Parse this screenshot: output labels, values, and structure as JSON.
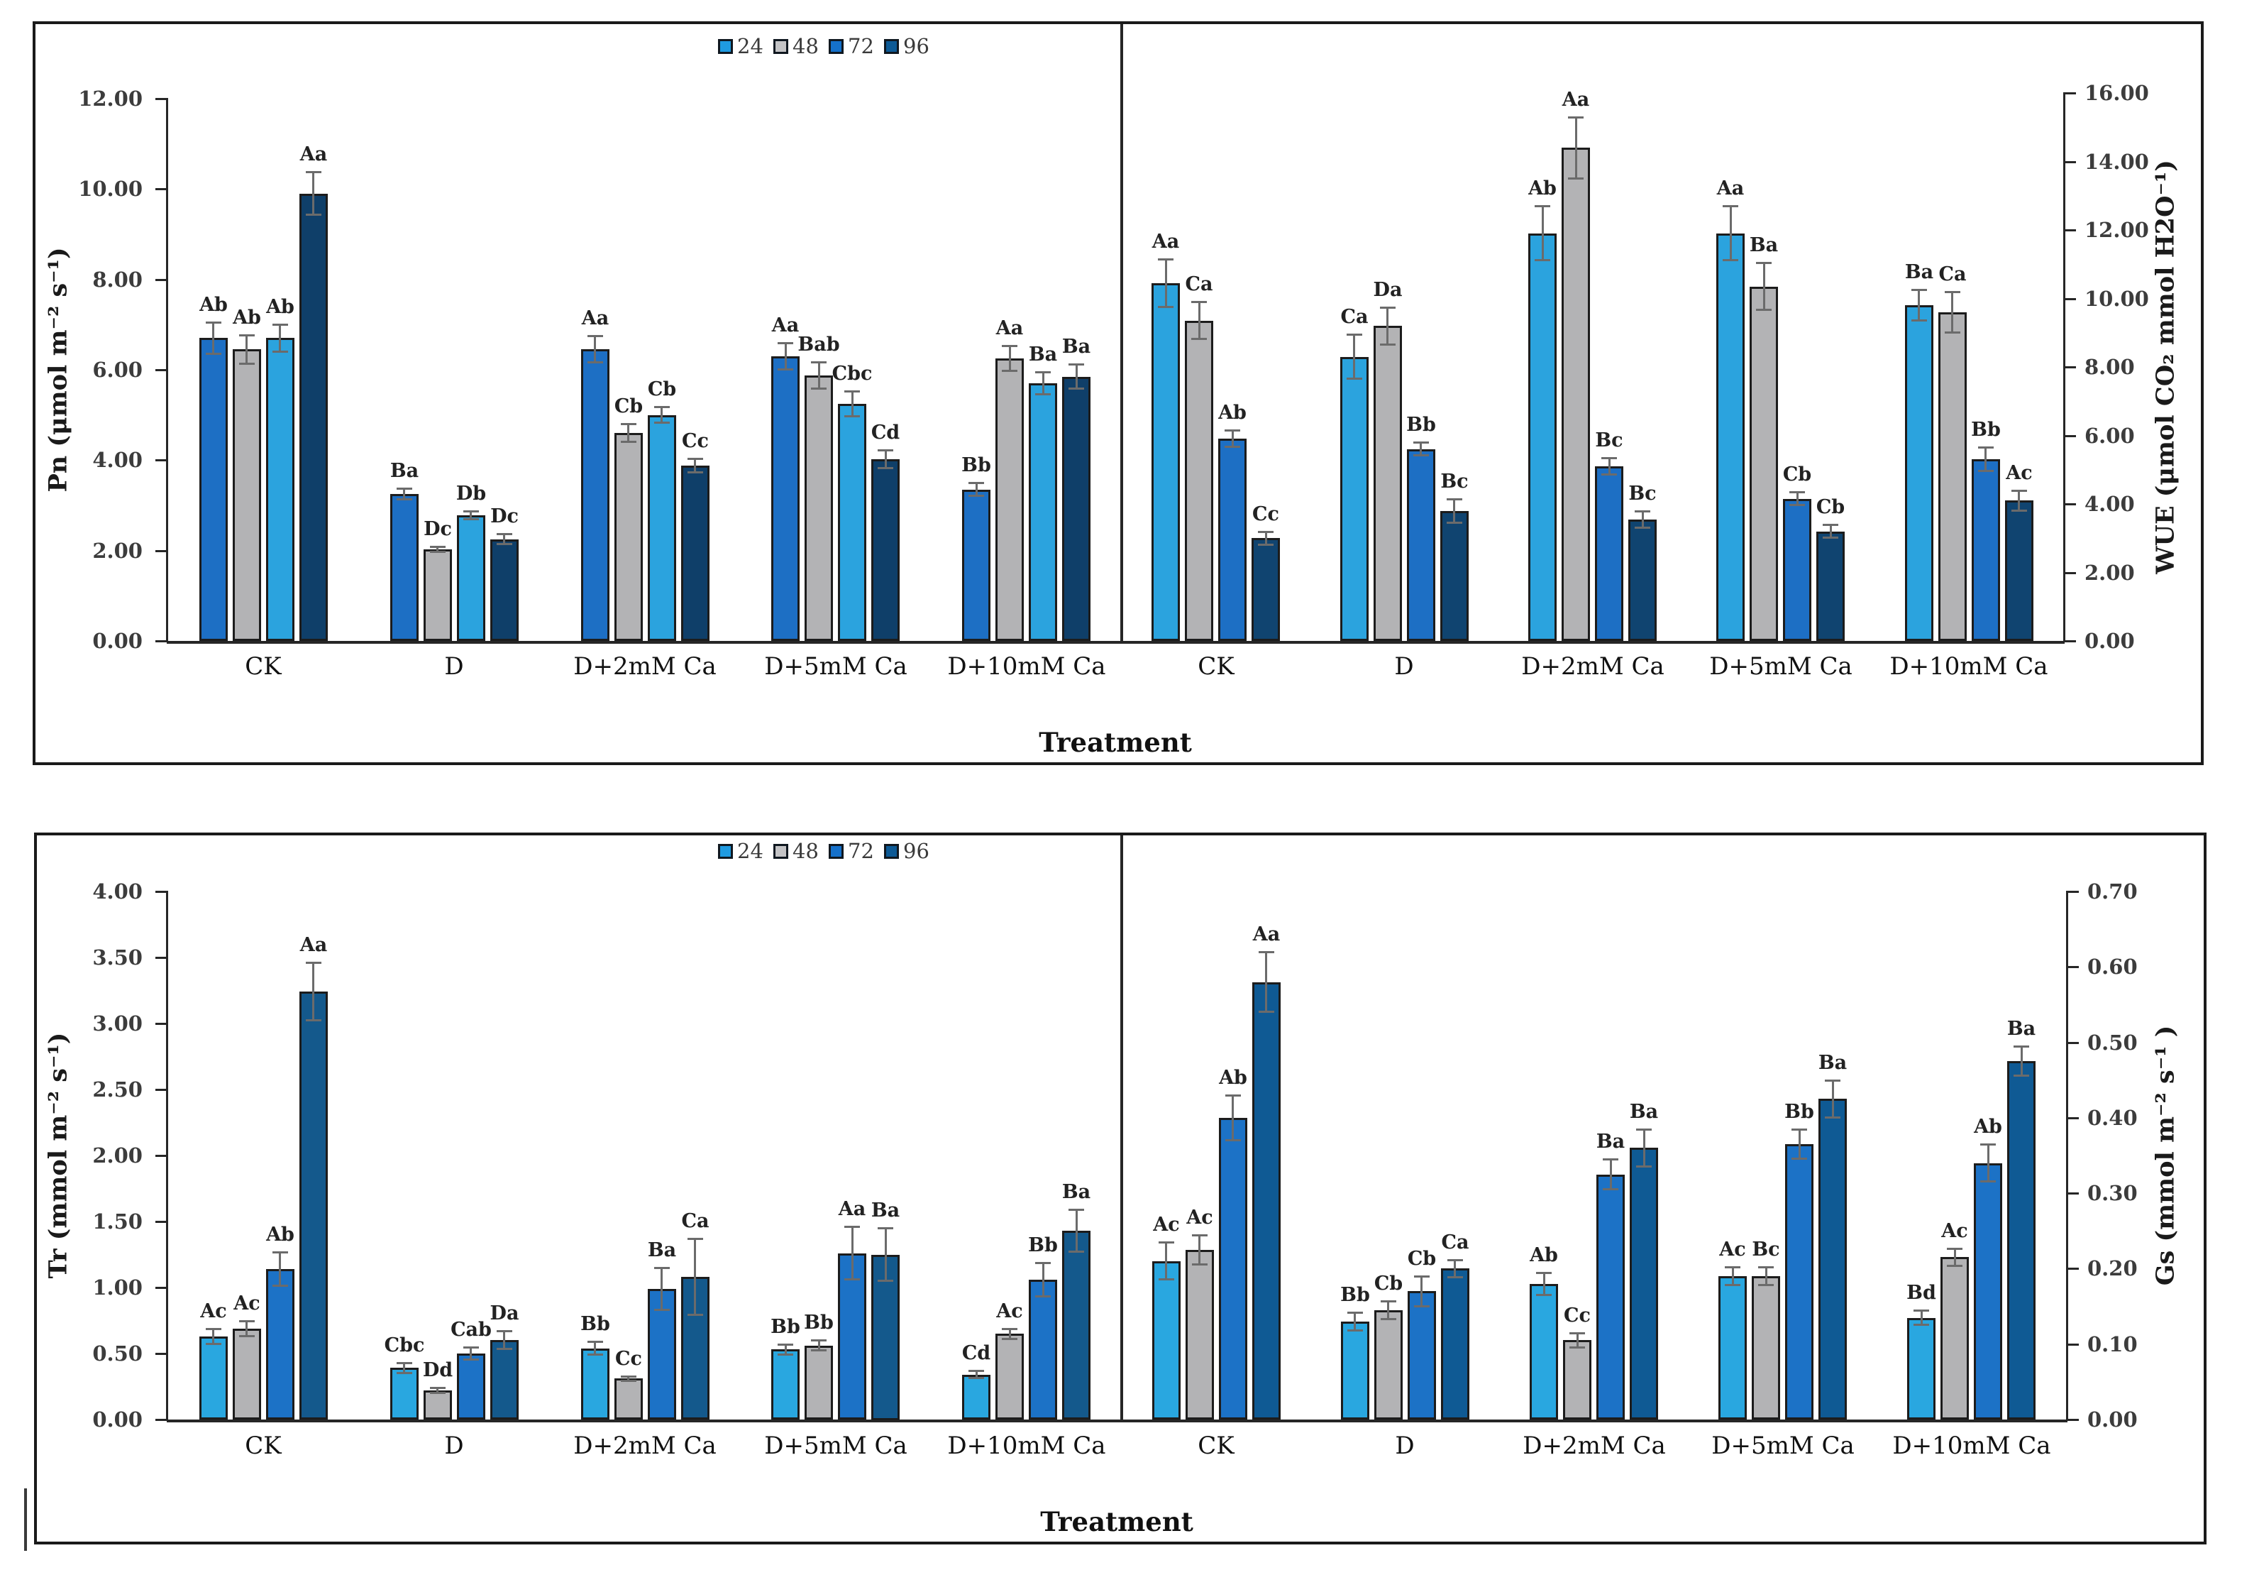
{
  "figure": {
    "xlabel": "Treatment",
    "categories": [
      "CK",
      "D",
      "D+2mM Ca",
      "D+5mM Ca",
      "D+10mM Ca"
    ],
    "legend": {
      "items": [
        {
          "label": "24",
          "color": "#1F9BE1"
        },
        {
          "label": "48",
          "color": "#C4C4C6"
        },
        {
          "label": "72",
          "color": "#1571CB"
        },
        {
          "label": "96",
          "color": "#0D5A96"
        }
      ]
    }
  },
  "chart_data": [
    {
      "id": "pn",
      "panel": "top-left",
      "type": "bar",
      "title": "",
      "xlabel": "Treatment",
      "ylabel": "Pn (μmol m⁻² s⁻¹)",
      "axis_side": "left",
      "ylim": [
        0,
        12
      ],
      "ytick_step": 2,
      "yticks": [
        "0.00",
        "2.00",
        "4.00",
        "6.00",
        "8.00",
        "10.00",
        "12.00"
      ],
      "categories": [
        "CK",
        "D",
        "D+2mM Ca",
        "D+5mM Ca",
        "D+10mM Ca"
      ],
      "series": [
        {
          "name": "24",
          "color": "#1D6FC4",
          "values": [
            6.7,
            3.25,
            6.45,
            6.3,
            3.35
          ],
          "errors": [
            0.35,
            0.12,
            0.3,
            0.3,
            0.15
          ],
          "letters": [
            "Ab",
            "Ba",
            "Aa",
            "Aa",
            "Bb"
          ]
        },
        {
          "name": "48",
          "color": "#B3B3B5",
          "values": [
            6.45,
            2.03,
            4.6,
            5.88,
            6.25
          ],
          "errors": [
            0.32,
            0.06,
            0.2,
            0.3,
            0.28
          ],
          "letters": [
            "Ab",
            "Dc",
            "Cb",
            "Bab",
            "Aa"
          ]
        },
        {
          "name": "72",
          "color": "#2BA3DE",
          "values": [
            6.7,
            2.78,
            5.0,
            5.25,
            5.7
          ],
          "errors": [
            0.3,
            0.1,
            0.18,
            0.28,
            0.25
          ],
          "letters": [
            "Ab",
            "Db",
            "Cb",
            "Cbc",
            "Ba"
          ]
        },
        {
          "name": "96",
          "color": "#0F3F69",
          "values": [
            9.9,
            2.25,
            3.88,
            4.02,
            5.85
          ],
          "errors": [
            0.48,
            0.12,
            0.15,
            0.2,
            0.28
          ],
          "letters": [
            "Aa",
            "Dc",
            "Cc",
            "Cd",
            "Ba"
          ]
        }
      ]
    },
    {
      "id": "wue",
      "panel": "top-right",
      "type": "bar",
      "title": "",
      "xlabel": "Treatment",
      "ylabel": "WUE (μmol CO₂  mmol H2O⁻¹)",
      "axis_side": "right",
      "ylim": [
        0,
        16
      ],
      "ytick_step": 2,
      "yticks": [
        "0.00",
        "2.00",
        "4.00",
        "6.00",
        "8.00",
        "10.00",
        "12.00",
        "14.00",
        "16.00"
      ],
      "categories": [
        "CK",
        "D",
        "D+2mM Ca",
        "D+5mM Ca",
        "D+10mM Ca"
      ],
      "series": [
        {
          "name": "24",
          "color": "#2BA3DE",
          "values": [
            10.45,
            8.3,
            11.9,
            11.9,
            9.8
          ],
          "errors": [
            0.7,
            0.65,
            0.8,
            0.8,
            0.45
          ],
          "letters": [
            "Aa",
            "Ca",
            "Ab",
            "Aa",
            "Ba"
          ]
        },
        {
          "name": "48",
          "color": "#B3B3B5",
          "values": [
            9.35,
            9.2,
            14.4,
            10.35,
            9.6
          ],
          "errors": [
            0.55,
            0.55,
            0.9,
            0.7,
            0.6
          ],
          "letters": [
            "Ca",
            "Da",
            "Aa",
            "Ba",
            "Ca"
          ]
        },
        {
          "name": "72",
          "color": "#1D6FC4",
          "values": [
            5.9,
            5.6,
            5.1,
            4.15,
            5.3
          ],
          "errors": [
            0.25,
            0.2,
            0.25,
            0.2,
            0.35
          ],
          "letters": [
            "Ab",
            "Bb",
            "Bc",
            "Cb",
            "Bb"
          ]
        },
        {
          "name": "96",
          "color": "#104470",
          "values": [
            3.0,
            3.8,
            3.55,
            3.2,
            4.1
          ],
          "errors": [
            0.2,
            0.35,
            0.25,
            0.2,
            0.3
          ],
          "letters": [
            "Cc",
            "Bc",
            "Bc",
            "Cb",
            "Ac"
          ]
        }
      ]
    },
    {
      "id": "tr",
      "panel": "bottom-left",
      "type": "bar",
      "title": "",
      "xlabel": "Treatment",
      "ylabel": "Tr (mmol m⁻² s⁻¹)",
      "axis_side": "left",
      "ylim": [
        0,
        4
      ],
      "ytick_step": 0.5,
      "yticks": [
        "0.00",
        "0.50",
        "1.00",
        "1.50",
        "2.00",
        "2.50",
        "3.00",
        "3.50",
        "4.00"
      ],
      "categories": [
        "CK",
        "D",
        "D+2mM Ca",
        "D+5mM Ca",
        "D+10mM Ca"
      ],
      "series": [
        {
          "name": "24",
          "color": "#29A7E0",
          "values": [
            0.63,
            0.39,
            0.54,
            0.53,
            0.34
          ],
          "errors": [
            0.06,
            0.04,
            0.05,
            0.04,
            0.03
          ],
          "letters": [
            "Ac",
            "Cbc",
            "Bb",
            "Bb",
            "Cd"
          ]
        },
        {
          "name": "48",
          "color": "#B3B3B5",
          "values": [
            0.69,
            0.22,
            0.31,
            0.56,
            0.65
          ],
          "errors": [
            0.06,
            0.02,
            0.02,
            0.04,
            0.04
          ],
          "letters": [
            "Ac",
            "Dd",
            "Cc",
            "Bb",
            "Ac"
          ]
        },
        {
          "name": "72",
          "color": "#1C72C6",
          "values": [
            1.14,
            0.5,
            0.99,
            1.26,
            1.06
          ],
          "errors": [
            0.13,
            0.05,
            0.16,
            0.2,
            0.13
          ],
          "letters": [
            "Ab",
            "Cab",
            "Ba",
            "Aa",
            "Bb"
          ]
        },
        {
          "name": "96",
          "color": "#14598C",
          "values": [
            3.24,
            0.6,
            1.08,
            1.25,
            1.43
          ],
          "errors": [
            0.22,
            0.07,
            0.29,
            0.2,
            0.16
          ],
          "letters": [
            "Aa",
            "Da",
            "Ca",
            "Ba",
            "Ba"
          ]
        }
      ]
    },
    {
      "id": "gs",
      "panel": "bottom-right",
      "type": "bar",
      "title": "",
      "xlabel": "Treatment",
      "ylabel": "Gs (mmol m⁻² s⁻¹ )",
      "axis_side": "right",
      "ylim": [
        0,
        0.7
      ],
      "ytick_step": 0.1,
      "yticks": [
        "0.00",
        "0.10",
        "0.20",
        "0.30",
        "0.40",
        "0.50",
        "0.60",
        "0.70"
      ],
      "categories": [
        "CK",
        "D",
        "D+2mM Ca",
        "D+5mM Ca",
        "D+10mM Ca"
      ],
      "series": [
        {
          "name": "24",
          "color": "#29A7E0",
          "values": [
            0.21,
            0.13,
            0.18,
            0.19,
            0.135
          ],
          "errors": [
            0.025,
            0.012,
            0.015,
            0.012,
            0.01
          ],
          "letters": [
            "Ac",
            "Bb",
            "Ab",
            "Ac",
            "Bd"
          ]
        },
        {
          "name": "48",
          "color": "#B3B3B5",
          "values": [
            0.225,
            0.145,
            0.105,
            0.19,
            0.215
          ],
          "errors": [
            0.02,
            0.012,
            0.01,
            0.012,
            0.012
          ],
          "letters": [
            "Ac",
            "Cb",
            "Cc",
            "Bc",
            "Ac"
          ]
        },
        {
          "name": "72",
          "color": "#1C72C6",
          "values": [
            0.4,
            0.17,
            0.325,
            0.365,
            0.34
          ],
          "errors": [
            0.03,
            0.02,
            0.02,
            0.02,
            0.025
          ],
          "letters": [
            "Ab",
            "Cb",
            "Ba",
            "Bb",
            "Ab"
          ]
        },
        {
          "name": "96",
          "color": "#0F5A94",
          "values": [
            0.58,
            0.2,
            0.36,
            0.425,
            0.475
          ],
          "errors": [
            0.04,
            0.012,
            0.025,
            0.025,
            0.02
          ],
          "letters": [
            "Aa",
            "Ca",
            "Ba",
            "Ba",
            "Ba"
          ]
        }
      ]
    }
  ]
}
